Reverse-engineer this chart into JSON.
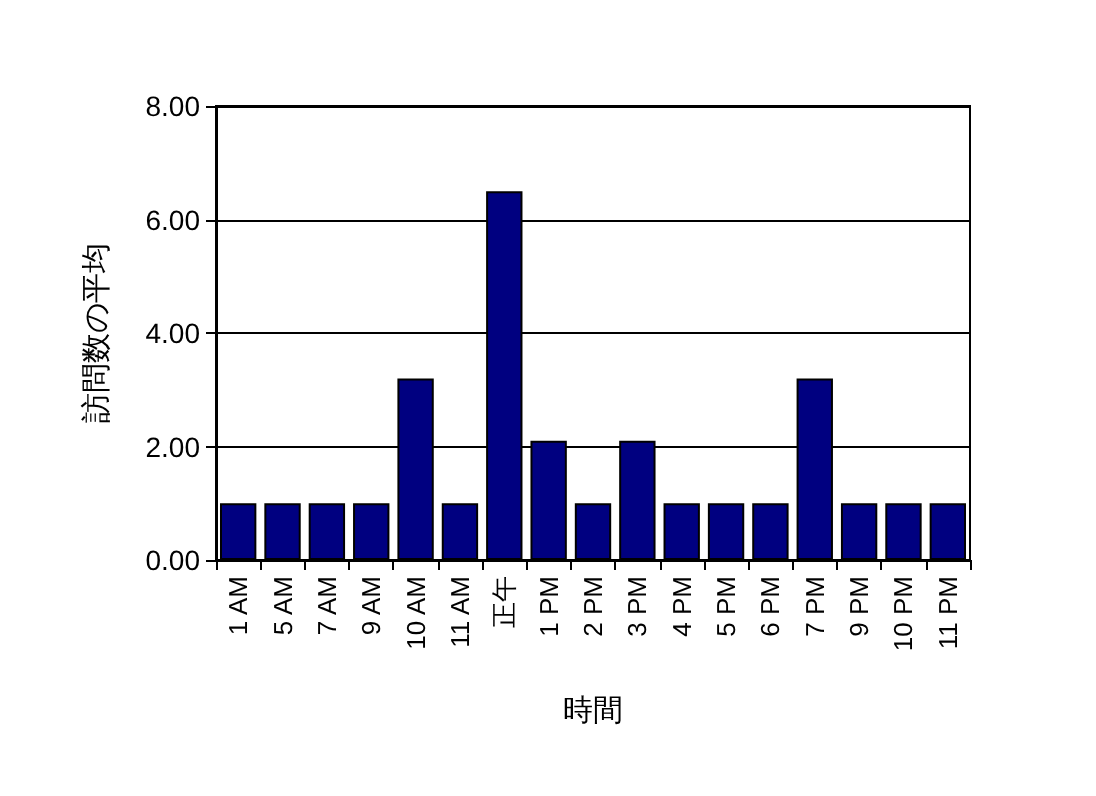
{
  "chart_data": {
    "type": "bar",
    "xlabel": "時間",
    "ylabel": "訪問数の平均",
    "categories": [
      "1 AM",
      "5 AM",
      "7 AM",
      "9 AM",
      "10 AM",
      "11 AM",
      "正午",
      "1 PM",
      "2 PM",
      "3 PM",
      "4 PM",
      "5 PM",
      "6 PM",
      "7 PM",
      "9 PM",
      "10 PM",
      "11 PM"
    ],
    "values": [
      1,
      1,
      1,
      1,
      3.2,
      1,
      6.5,
      2.1,
      1,
      2.1,
      1,
      1,
      1,
      3.2,
      1,
      1,
      1
    ],
    "color": "#000080",
    "ylim": [
      0,
      8
    ],
    "yticks": [
      {
        "value": 0,
        "label": "0.00"
      },
      {
        "value": 2,
        "label": "2.00"
      },
      {
        "value": 4,
        "label": "4.00"
      },
      {
        "value": 6,
        "label": "6.00"
      },
      {
        "value": 8,
        "label": "8.00"
      }
    ],
    "grid": "y"
  }
}
